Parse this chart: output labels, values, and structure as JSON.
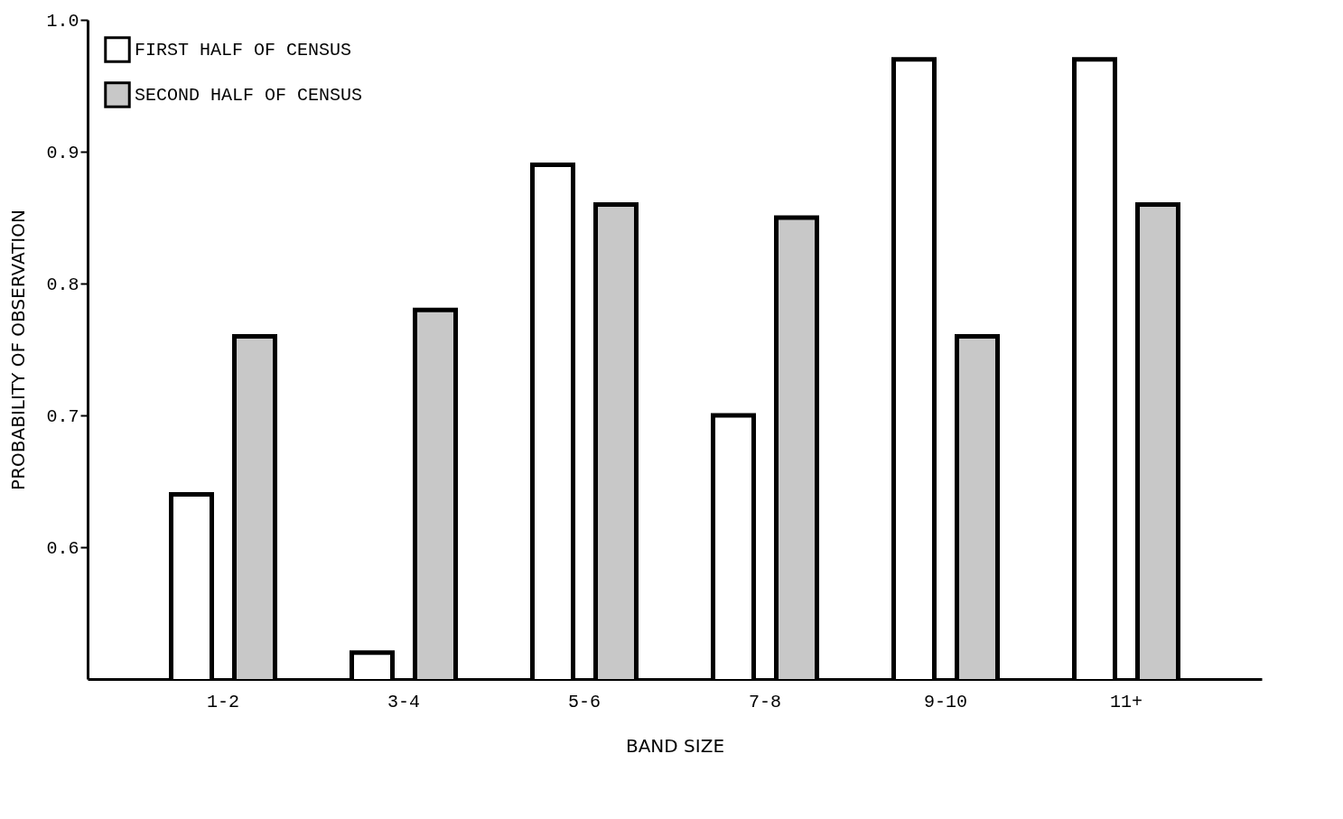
{
  "chart_data": {
    "type": "bar",
    "xlabel": "BAND SIZE",
    "ylabel": "PROBABILITY OF OBSERVATION",
    "categories": [
      "1-2",
      "3-4",
      "5-6",
      "7-8",
      "9-10",
      "11+"
    ],
    "series": [
      {
        "name": "FIRST HALF OF CENSUS",
        "color": "#ffffff",
        "values": [
          0.64,
          0.52,
          0.89,
          0.7,
          0.97,
          0.97
        ]
      },
      {
        "name": "SECOND HALF OF CENSUS",
        "color": "#c8c8c8",
        "values": [
          0.76,
          0.78,
          0.86,
          0.85,
          0.76,
          0.86
        ]
      }
    ],
    "ylim": [
      0.5,
      1.0
    ],
    "yticks": [
      0.6,
      0.7,
      0.8,
      0.9,
      {
        "value": 1.0,
        "label": "1.0"
      }
    ],
    "grid": false,
    "legend": "top left"
  }
}
